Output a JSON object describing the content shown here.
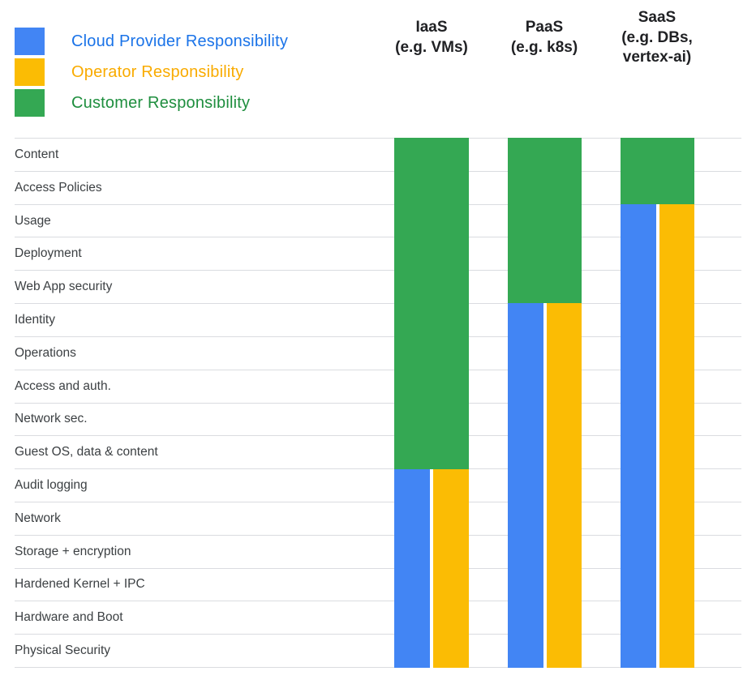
{
  "legend": {
    "items": [
      {
        "name": "cloud-provider",
        "label": "Cloud Provider Responsibility",
        "swatch_color": "#4285F4",
        "text_color": "#1A73E8"
      },
      {
        "name": "operator",
        "label": "Operator Responsibility",
        "swatch_color": "#FBBC04",
        "text_color": "#F9AB00"
      },
      {
        "name": "customer",
        "label": "Customer Responsibility",
        "swatch_color": "#34A853",
        "text_color": "#1E8E3E"
      }
    ]
  },
  "chart_data": {
    "type": "heatmap",
    "visual_style": "stacked-columns-over-row-grid",
    "legend_position": "top-left",
    "grid": true,
    "encoding_note": "Rows below the customer boundary are split vertically: left half = cloud provider (blue), right half = operator (yellow); rows above are full-width customer (green).",
    "categories": [
      "Content",
      "Access Policies",
      "Usage",
      "Deployment",
      "Web App security",
      "Identity",
      "Operations",
      "Access and auth.",
      "Network sec.",
      "Guest OS, data & content",
      "Audit logging",
      "Network",
      "Storage + encryption",
      "Hardened Kernel + IPC",
      "Hardware and Boot",
      "Physical Security"
    ],
    "columns": [
      {
        "label": "IaaS",
        "sublabel": "(e.g. VMs)",
        "customer_row_count": 10,
        "customer_responsibility_rows": [
          "Content",
          "Access Policies",
          "Usage",
          "Deployment",
          "Web App security",
          "Identity",
          "Operations",
          "Access and auth.",
          "Network sec.",
          "Guest OS, data & content"
        ],
        "provider_and_operator_rows": [
          "Audit logging",
          "Network",
          "Storage + encryption",
          "Hardened Kernel + IPC",
          "Hardware and Boot",
          "Physical Security"
        ]
      },
      {
        "label": "PaaS",
        "sublabel": "(e.g. k8s)",
        "customer_row_count": 5,
        "customer_responsibility_rows": [
          "Content",
          "Access Policies",
          "Usage",
          "Deployment",
          "Web App security"
        ],
        "provider_and_operator_rows": [
          "Identity",
          "Operations",
          "Access and auth.",
          "Network sec.",
          "Guest OS, data & content",
          "Audit logging",
          "Network",
          "Storage + encryption",
          "Hardened Kernel + IPC",
          "Hardware and Boot",
          "Physical Security"
        ]
      },
      {
        "label": "SaaS",
        "sublabel": "(e.g. DBs,\nvertex-ai)",
        "customer_row_count": 2,
        "customer_responsibility_rows": [
          "Content",
          "Access Policies"
        ],
        "provider_and_operator_rows": [
          "Usage",
          "Deployment",
          "Web App security",
          "Identity",
          "Operations",
          "Access and auth.",
          "Network sec.",
          "Guest OS, data & content",
          "Audit logging",
          "Network",
          "Storage + encryption",
          "Hardened Kernel + IPC",
          "Hardware and Boot",
          "Physical Security"
        ]
      }
    ],
    "colors": {
      "provider": "#4285F4",
      "operator": "#FBBC04",
      "customer": "#34A853"
    }
  }
}
